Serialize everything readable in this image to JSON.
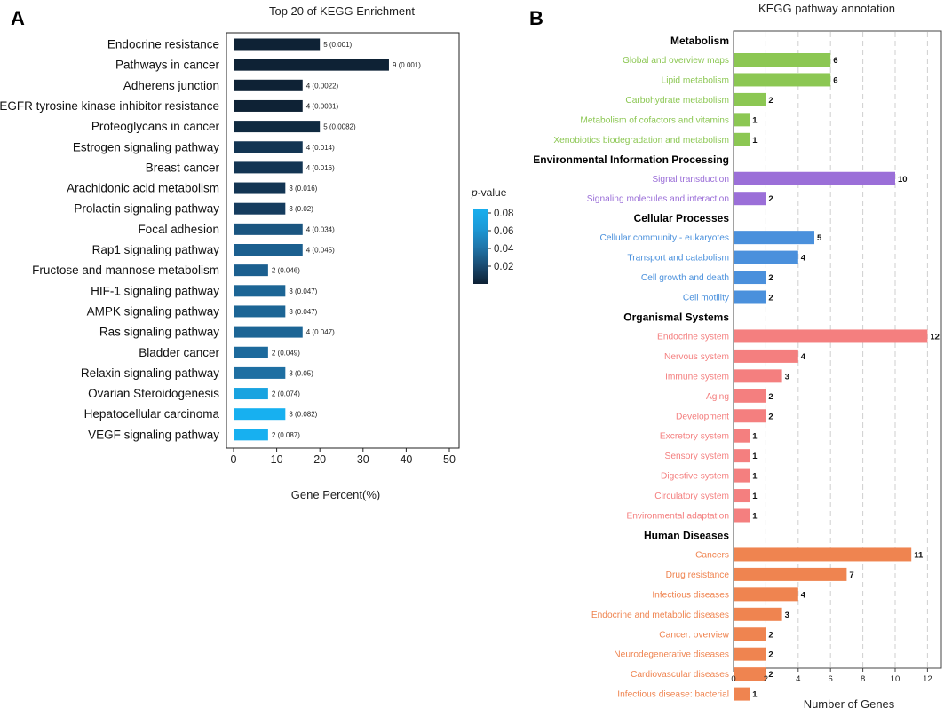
{
  "chart_data": [
    {
      "panel": "A",
      "type": "bar",
      "orientation": "horizontal",
      "title": "Top 20 of KEGG Enrichment",
      "xlabel": "Gene Percent(%)",
      "ylabel": "",
      "xlim": [
        0,
        50
      ],
      "xticks": [
        0,
        10,
        20,
        30,
        40,
        50
      ],
      "grid": false,
      "legend": {
        "title_prefix": "p",
        "title_suffix": "-value",
        "ticks": [
          "0.08",
          "0.06",
          "0.04",
          "0.02"
        ],
        "gradient": [
          "#0d2033",
          "#1a4c72",
          "#1f76ab",
          "#1b9ad8",
          "#17aeee"
        ],
        "placement": "right"
      },
      "categories": [
        "Endocrine resistance",
        "Pathways in cancer",
        "Adherens junction",
        "EGFR tyrosine kinase inhibitor resistance",
        "Proteoglycans in cancer",
        "Estrogen signaling pathway",
        "Breast cancer",
        "Arachidonic acid metabolism",
        "Prolactin signaling pathway",
        "Focal adhesion",
        "Rap1 signaling pathway",
        "Fructose and mannose metabolism",
        "HIF-1 signaling pathway",
        "AMPK signaling pathway",
        "Ras signaling pathway",
        "Bladder cancer",
        "Relaxin signaling pathway",
        "Ovarian Steroidogenesis",
        "Hepatocellular carcinoma",
        "VEGF signaling pathway"
      ],
      "values": [
        20,
        36,
        16,
        16,
        20,
        16,
        16,
        12,
        12,
        16,
        16,
        8,
        12,
        12,
        16,
        8,
        12,
        8,
        12,
        8
      ],
      "data_labels": [
        "5 (0.001)",
        "9 (0.001)",
        "4 (0.0022)",
        "4 (0.0031)",
        "5 (0.0082)",
        "4 (0.014)",
        "4 (0.016)",
        "3 (0.016)",
        "3 (0.02)",
        "4 (0.034)",
        "4 (0.045)",
        "2 (0.046)",
        "3 (0.047)",
        "3 (0.047)",
        "4 (0.047)",
        "2 (0.049)",
        "3 (0.05)",
        "2 (0.074)",
        "3 (0.082)",
        "2 (0.087)"
      ],
      "colors": [
        "#0e2235",
        "#0e2235",
        "#0e2235",
        "#0e2235",
        "#102a40",
        "#133553",
        "#133553",
        "#133553",
        "#153c5e",
        "#1a5580",
        "#1b5f8f",
        "#1b5f8f",
        "#1c6595",
        "#1c6595",
        "#1c6595",
        "#1d6a9c",
        "#1e6fa2",
        "#19a3e0",
        "#17b0f0",
        "#17b0f0"
      ]
    },
    {
      "panel": "B",
      "type": "bar",
      "orientation": "horizontal",
      "title": "KEGG pathway annotation",
      "xlabel": "Number of Genes",
      "ylabel": "",
      "xlim": [
        0,
        12.6
      ],
      "xticks": [
        0,
        2,
        4,
        6,
        8,
        10,
        12
      ],
      "grid": true,
      "groups": [
        {
          "name": "Metabolism",
          "color": "#8cc753",
          "items": [
            {
              "label": "Global and overview maps",
              "value": 6
            },
            {
              "label": "Lipid metabolism",
              "value": 6
            },
            {
              "label": "Carbohydrate metabolism",
              "value": 2
            },
            {
              "label": "Metabolism of cofactors and vitamins",
              "value": 1
            },
            {
              "label": "Xenobiotics biodegradation and metabolism",
              "value": 1
            }
          ]
        },
        {
          "name": "Environmental Information Processing",
          "color": "#9b6fd8",
          "items": [
            {
              "label": "Signal transduction",
              "value": 10
            },
            {
              "label": "Signaling molecules and interaction",
              "value": 2
            }
          ]
        },
        {
          "name": "Cellular Processes",
          "color": "#4a90dc",
          "items": [
            {
              "label": "Cellular community - eukaryotes",
              "value": 5
            },
            {
              "label": "Transport and catabolism",
              "value": 4
            },
            {
              "label": "Cell growth and death",
              "value": 2
            },
            {
              "label": "Cell motility",
              "value": 2
            }
          ]
        },
        {
          "name": "Organismal Systems",
          "color": "#f47f7f",
          "items": [
            {
              "label": "Endocrine system",
              "value": 12
            },
            {
              "label": "Nervous system",
              "value": 4
            },
            {
              "label": "Immune system",
              "value": 3
            },
            {
              "label": "Aging",
              "value": 2
            },
            {
              "label": "Development",
              "value": 2
            },
            {
              "label": "Excretory system",
              "value": 1
            },
            {
              "label": "Sensory system",
              "value": 1
            },
            {
              "label": "Digestive system",
              "value": 1
            },
            {
              "label": "Circulatory system",
              "value": 1
            },
            {
              "label": "Environmental adaptation",
              "value": 1
            }
          ]
        },
        {
          "name": "Human Diseases",
          "color": "#ef8450",
          "items": [
            {
              "label": "Cancers",
              "value": 11
            },
            {
              "label": "Drug resistance",
              "value": 7
            },
            {
              "label": "Infectious diseases",
              "value": 4
            },
            {
              "label": "Endocrine and metabolic diseases",
              "value": 3
            },
            {
              "label": "Cancer: overview",
              "value": 2
            },
            {
              "label": "Neurodegenerative diseases",
              "value": 2
            },
            {
              "label": "Cardiovascular diseases",
              "value": 2
            },
            {
              "label": "Infectious disease: bacterial",
              "value": 1
            }
          ]
        }
      ]
    }
  ]
}
